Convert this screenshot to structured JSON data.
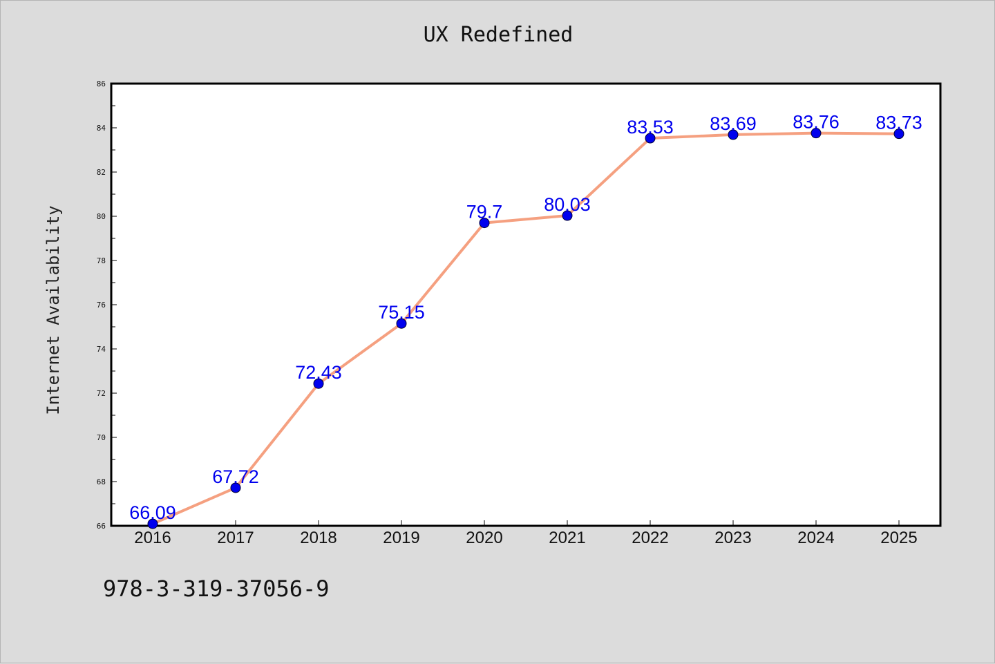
{
  "title": "UX Redefined",
  "footnote": "978-3-319-37056-9",
  "colors": {
    "background": "#dcdcdc",
    "plot_area": "#ffffff",
    "line": "#f5a080",
    "marker": "#0000ee",
    "data_label": "#0000ee"
  },
  "chart_data": {
    "type": "line",
    "title": "UX Redefined",
    "xlabel": "",
    "ylabel": "Internet Availability",
    "categories": [
      "2016",
      "2017",
      "2018",
      "2019",
      "2020",
      "2021",
      "2022",
      "2023",
      "2024",
      "2025"
    ],
    "series": [
      {
        "values": [
          66.09,
          67.72,
          72.43,
          75.15,
          79.7,
          80.03,
          83.53,
          83.69,
          83.76,
          83.73
        ],
        "labels": [
          "66.09",
          "67.72",
          "72.43",
          "75.15",
          "79.7",
          "80.03",
          "83.53",
          "83.69",
          "83.76",
          "83.73"
        ]
      }
    ],
    "ylim": [
      66,
      86
    ],
    "yticks": [
      "66",
      "68",
      "70",
      "72",
      "74",
      "76",
      "78",
      "80",
      "82",
      "84",
      "86"
    ],
    "grid": false,
    "legend": "none"
  }
}
